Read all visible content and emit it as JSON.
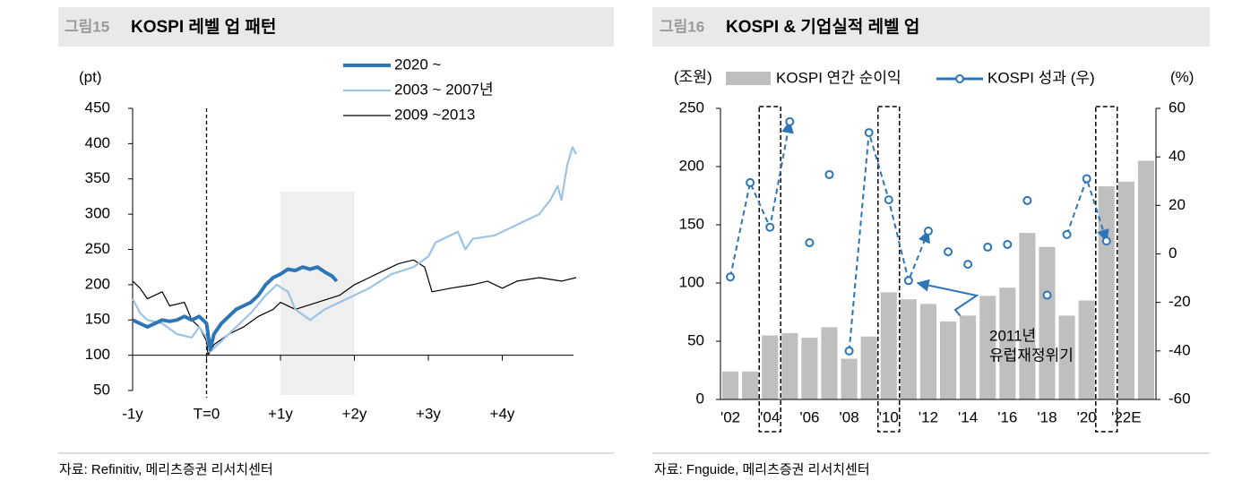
{
  "chart_data": [
    {
      "type": "line",
      "figure_label": "그림15",
      "title": "KOSPI 레벨 업 패턴",
      "ylabel": "(pt)",
      "ylim": [
        50,
        450
      ],
      "yticks": [
        50,
        100,
        150,
        200,
        250,
        300,
        350,
        400,
        450
      ],
      "xlim": [
        -1,
        5
      ],
      "xticks": [
        {
          "value": -1,
          "label": "-1y"
        },
        {
          "value": 0,
          "label": "T=0"
        },
        {
          "value": 1,
          "label": "+1y"
        },
        {
          "value": 2,
          "label": "+2y"
        },
        {
          "value": 3,
          "label": "+3y"
        },
        {
          "value": 4,
          "label": "+4y"
        }
      ],
      "x_axis_at": 100,
      "vline": 0,
      "highlight": {
        "x": [
          1,
          2
        ],
        "y": [
          50,
          332
        ]
      },
      "series": [
        {
          "name": "2020 ~",
          "color": "#2e75b6",
          "line_width": 4,
          "x": [
            -1,
            -0.9,
            -0.8,
            -0.7,
            -0.6,
            -0.5,
            -0.4,
            -0.3,
            -0.2,
            -0.1,
            0,
            0.05,
            0.1,
            0.2,
            0.3,
            0.4,
            0.5,
            0.6,
            0.7,
            0.8,
            0.9,
            1,
            1.1,
            1.2,
            1.3,
            1.4,
            1.5,
            1.6,
            1.7,
            1.76
          ],
          "values": [
            150,
            145,
            140,
            145,
            150,
            148,
            150,
            155,
            150,
            155,
            145,
            108,
            130,
            145,
            155,
            165,
            170,
            175,
            185,
            200,
            210,
            215,
            222,
            220,
            225,
            222,
            225,
            218,
            212,
            205
          ]
        },
        {
          "name": "2003 ~ 2007년",
          "color": "#9dc3e6",
          "line_width": 2.2,
          "x": [
            -1,
            -0.9,
            -0.8,
            -0.6,
            -0.4,
            -0.2,
            -0.1,
            0,
            0.05,
            0.2,
            0.4,
            0.6,
            0.8,
            0.95,
            1.1,
            1.2,
            1.4,
            1.6,
            1.9,
            2.2,
            2.5,
            2.8,
            3,
            3.1,
            3.4,
            3.5,
            3.6,
            3.9,
            4.2,
            4.5,
            4.65,
            4.75,
            4.8,
            4.88,
            4.95,
            5
          ],
          "values": [
            180,
            160,
            150,
            145,
            130,
            125,
            140,
            125,
            105,
            120,
            140,
            160,
            185,
            200,
            190,
            165,
            150,
            165,
            180,
            195,
            215,
            225,
            240,
            260,
            275,
            250,
            265,
            270,
            285,
            300,
            320,
            340,
            320,
            370,
            395,
            385
          ]
        },
        {
          "name": "2009 ~2013",
          "color": "#000000",
          "line_width": 1.2,
          "x": [
            -1,
            -0.9,
            -0.8,
            -0.6,
            -0.5,
            -0.3,
            -0.2,
            -0.1,
            0,
            0.02,
            0.1,
            0.3,
            0.5,
            0.7,
            0.9,
            1,
            1.2,
            1.5,
            1.8,
            2,
            2.2,
            2.4,
            2.6,
            2.8,
            2.95,
            3.05,
            3.3,
            3.6,
            3.8,
            4,
            4.2,
            4.5,
            4.8,
            5
          ],
          "values": [
            205,
            195,
            180,
            190,
            170,
            175,
            150,
            140,
            120,
            100,
            115,
            130,
            140,
            155,
            165,
            175,
            165,
            175,
            185,
            200,
            210,
            220,
            230,
            235,
            225,
            190,
            195,
            200,
            205,
            195,
            205,
            210,
            205,
            210
          ]
        }
      ],
      "source": "자료: Refinitiv, 메리츠증권 리서치센터"
    },
    {
      "type": "bar_line",
      "figure_label": "그림16",
      "title": "KOSPI & 기업실적 레벨 업",
      "ylabel": "(조원)",
      "y2label": "(%)",
      "categories": [
        "'02",
        null,
        "'04",
        null,
        "'06",
        null,
        "'08",
        null,
        "'10",
        null,
        "'12",
        null,
        "'14",
        null,
        "'16",
        null,
        "'18",
        null,
        "'20",
        null,
        "'22E",
        null
      ],
      "ylim": [
        0,
        250
      ],
      "yticks": [
        0,
        50,
        100,
        150,
        200,
        250
      ],
      "y2lim": [
        -60,
        60
      ],
      "y2ticks": [
        -60,
        -40,
        -20,
        0,
        20,
        40,
        60
      ],
      "series": [
        {
          "name": "KOSPI 연간 순이익",
          "type": "bar",
          "color": "#bfbfbf",
          "values": [
            24,
            24,
            55,
            57,
            53,
            62,
            35,
            54,
            92,
            86,
            82,
            67,
            72,
            89,
            96,
            143,
            131,
            72,
            85,
            183,
            187,
            205
          ]
        },
        {
          "name": "KOSPI 성과 (우)",
          "type": "line",
          "axis": "y2",
          "color": "#2e75b6",
          "values": [
            -9.5,
            29.4,
            11,
            54.5,
            4.6,
            32.7,
            -40,
            50,
            22.3,
            -11,
            9.4,
            0.9,
            -4.3,
            2.8,
            3.9,
            22,
            -17,
            8,
            31,
            5.3,
            null,
            null
          ],
          "dashed_ranges": [
            [
              0,
              3
            ],
            [
              6,
              10
            ],
            [
              17,
              19
            ]
          ]
        }
      ],
      "boxed": [
        2,
        8,
        19
      ],
      "annotation": [
        "2011년",
        "유럽재정위기"
      ],
      "source": "자료: Fnguide, 메리츠증권 리서치센터"
    }
  ]
}
